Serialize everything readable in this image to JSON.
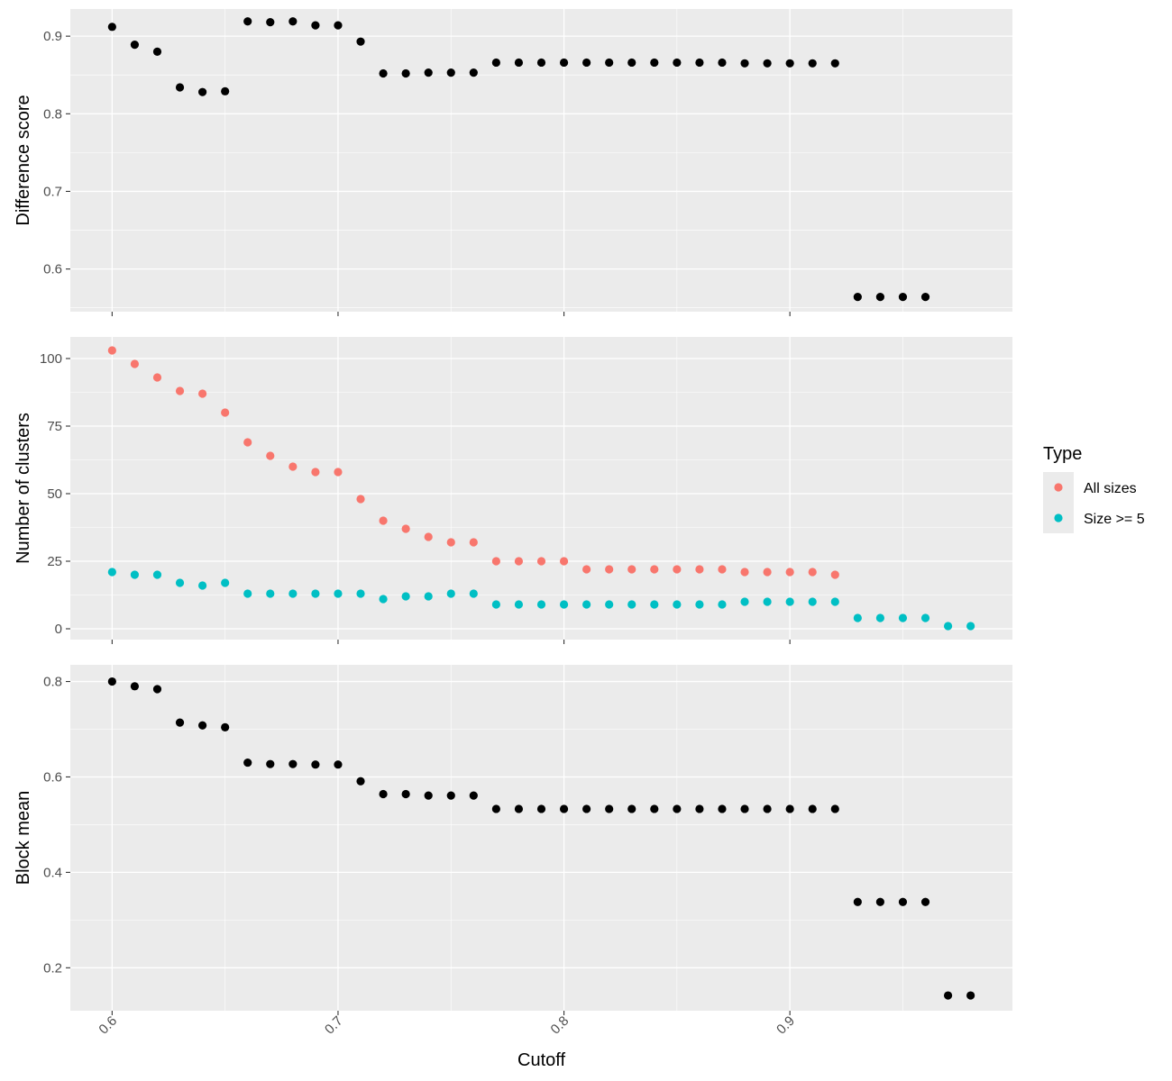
{
  "chart_data": {
    "type": "scatter",
    "x_label": "Cutoff",
    "x_ticks": [
      0.6,
      0.7,
      0.8,
      0.9
    ],
    "x_range": [
      0.5815,
      0.9985
    ],
    "panel_background": "#ebebeb",
    "grid": true,
    "legend": {
      "title": "Type",
      "position": "right",
      "entries": [
        {
          "label": "All sizes",
          "color": "#f8766d"
        },
        {
          "label": "Size >= 5",
          "color": "#00bfc4"
        }
      ]
    },
    "panels": [
      {
        "y_label": "Difference score",
        "y_range": [
          0.545,
          0.935
        ],
        "y_ticks": [
          0.6,
          0.7,
          0.8,
          0.9
        ],
        "series": [
          {
            "color": "#000000",
            "x": [
              0.6,
              0.61,
              0.62,
              0.63,
              0.64,
              0.65,
              0.66,
              0.67,
              0.68,
              0.69,
              0.7,
              0.71,
              0.72,
              0.73,
              0.74,
              0.75,
              0.76,
              0.77,
              0.78,
              0.79,
              0.8,
              0.81,
              0.82,
              0.83,
              0.84,
              0.85,
              0.86,
              0.87,
              0.88,
              0.89,
              0.9,
              0.91,
              0.92,
              0.93,
              0.94,
              0.95,
              0.96
            ],
            "y": [
              0.912,
              0.889,
              0.88,
              0.834,
              0.828,
              0.829,
              0.919,
              0.918,
              0.919,
              0.914,
              0.914,
              0.893,
              0.852,
              0.852,
              0.853,
              0.853,
              0.853,
              0.866,
              0.866,
              0.866,
              0.866,
              0.866,
              0.866,
              0.866,
              0.866,
              0.866,
              0.866,
              0.866,
              0.865,
              0.865,
              0.865,
              0.865,
              0.865,
              0.564,
              0.564,
              0.564,
              0.564
            ]
          }
        ]
      },
      {
        "y_label": "Number of clusters",
        "y_range": [
          -4,
          108
        ],
        "y_ticks": [
          0,
          25,
          50,
          75,
          100
        ],
        "series": [
          {
            "name": "All sizes",
            "color": "#f8766d",
            "x": [
              0.6,
              0.61,
              0.62,
              0.63,
              0.64,
              0.65,
              0.66,
              0.67,
              0.68,
              0.69,
              0.7,
              0.71,
              0.72,
              0.73,
              0.74,
              0.75,
              0.76,
              0.77,
              0.78,
              0.79,
              0.8,
              0.81,
              0.82,
              0.83,
              0.84,
              0.85,
              0.86,
              0.87,
              0.88,
              0.89,
              0.9,
              0.91,
              0.92
            ],
            "y": [
              103,
              98,
              93,
              88,
              87,
              80,
              69,
              64,
              60,
              58,
              58,
              48,
              40,
              37,
              34,
              32,
              32,
              25,
              25,
              25,
              25,
              22,
              22,
              22,
              22,
              22,
              22,
              22,
              21,
              21,
              21,
              21,
              20
            ]
          },
          {
            "name": "Size >= 5",
            "color": "#00bfc4",
            "x": [
              0.6,
              0.61,
              0.62,
              0.63,
              0.64,
              0.65,
              0.66,
              0.67,
              0.68,
              0.69,
              0.7,
              0.71,
              0.72,
              0.73,
              0.74,
              0.75,
              0.76,
              0.77,
              0.78,
              0.79,
              0.8,
              0.81,
              0.82,
              0.83,
              0.84,
              0.85,
              0.86,
              0.87,
              0.88,
              0.89,
              0.9,
              0.91,
              0.92,
              0.93,
              0.94,
              0.95,
              0.96,
              0.97,
              0.98
            ],
            "y": [
              21,
              20,
              20,
              17,
              16,
              17,
              13,
              13,
              13,
              13,
              13,
              13,
              11,
              12,
              12,
              13,
              13,
              9,
              9,
              9,
              9,
              9,
              9,
              9,
              9,
              9,
              9,
              9,
              10,
              10,
              10,
              10,
              10,
              4,
              4,
              4,
              4,
              1,
              1
            ]
          }
        ]
      },
      {
        "y_label": "Block mean",
        "y_range": [
          0.11,
          0.835
        ],
        "y_ticks": [
          0.2,
          0.4,
          0.6,
          0.8
        ],
        "series": [
          {
            "color": "#000000",
            "x": [
              0.6,
              0.61,
              0.62,
              0.63,
              0.64,
              0.65,
              0.66,
              0.67,
              0.68,
              0.69,
              0.7,
              0.71,
              0.72,
              0.73,
              0.74,
              0.75,
              0.76,
              0.77,
              0.78,
              0.79,
              0.8,
              0.81,
              0.82,
              0.83,
              0.84,
              0.85,
              0.86,
              0.87,
              0.88,
              0.89,
              0.9,
              0.91,
              0.92,
              0.93,
              0.94,
              0.95,
              0.96,
              0.97,
              0.98
            ],
            "y": [
              0.8,
              0.79,
              0.784,
              0.714,
              0.708,
              0.704,
              0.63,
              0.627,
              0.627,
              0.626,
              0.626,
              0.591,
              0.564,
              0.564,
              0.561,
              0.561,
              0.561,
              0.533,
              0.533,
              0.533,
              0.533,
              0.533,
              0.533,
              0.533,
              0.533,
              0.533,
              0.533,
              0.533,
              0.533,
              0.533,
              0.533,
              0.533,
              0.533,
              0.338,
              0.338,
              0.338,
              0.338,
              0.142,
              0.142
            ]
          }
        ]
      }
    ]
  }
}
